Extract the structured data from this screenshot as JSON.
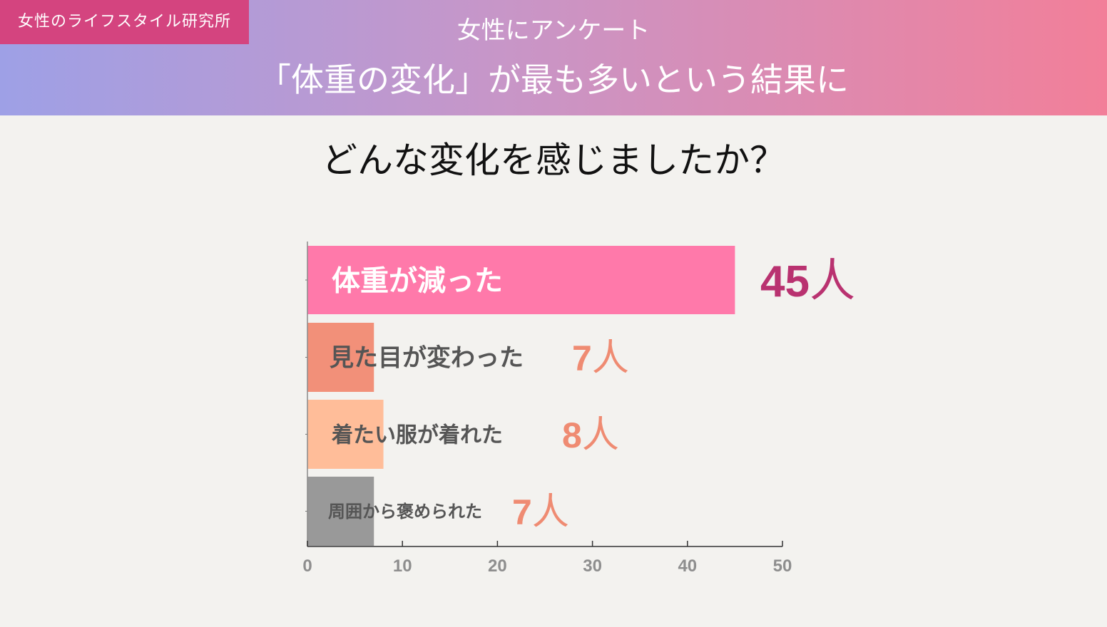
{
  "header": {
    "brand": "女性のライフスタイル研究所",
    "line1": "女性にアンケート",
    "line2": "「体重の変化」が最も多いという結果に"
  },
  "question": "どんな変化を感じましたか？",
  "chart_data": {
    "type": "bar",
    "orientation": "horizontal",
    "categories": [
      "体重が減った",
      "見た目が変わった",
      "着たい服が着れた",
      "周囲から褒められた"
    ],
    "values": [
      45,
      7,
      8,
      7
    ],
    "value_labels": [
      "45",
      "7",
      "8",
      "7"
    ],
    "unit": "人",
    "xlim": [
      0,
      50
    ],
    "x_ticks": [
      0,
      10,
      20,
      30,
      40,
      50
    ],
    "grid": false,
    "colors": {
      "bars": [
        "#ff79aa",
        "#f29079",
        "#ffbd99",
        "#999999"
      ],
      "value_numbers": [
        "#b93270",
        "#ef8b72",
        "#ef8b72",
        "#ef8b72"
      ],
      "value_units": [
        "#b93270",
        "#ef8b72",
        "#ef8b72",
        "#ef8b72"
      ],
      "bar_labels": [
        "#ffffff",
        "#555555",
        "#555555",
        "#555555"
      ]
    }
  }
}
